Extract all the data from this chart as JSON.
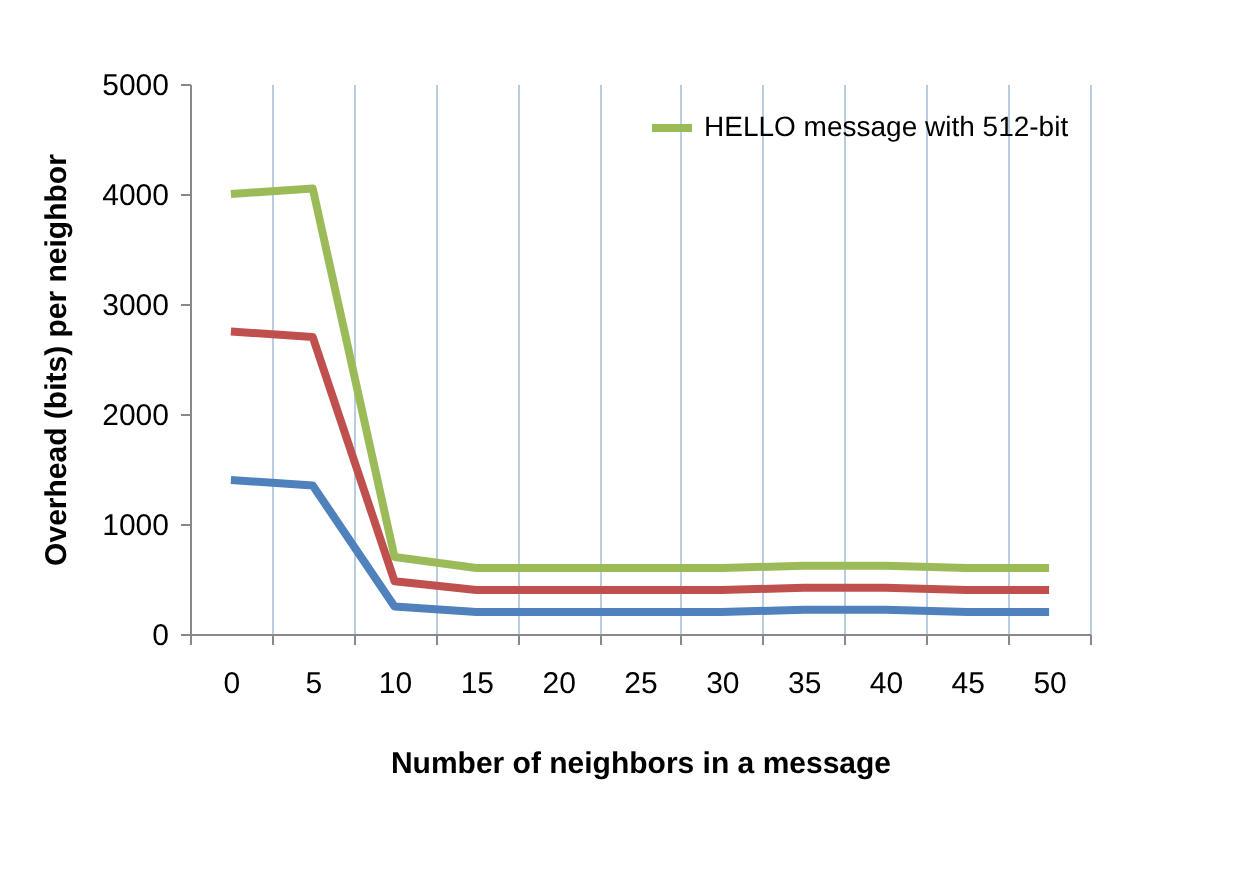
{
  "chart_data": {
    "type": "line",
    "xlabel": "Number of neighbors in a message",
    "ylabel": "Overhead (bits) per neighbor",
    "categories": [
      "0",
      "5",
      "10",
      "15",
      "20",
      "25",
      "30",
      "35",
      "40",
      "45",
      "50"
    ],
    "series": [
      {
        "name": "HELLO message with 512-bit",
        "color": "#9bbb59",
        "values": [
          4000,
          4050,
          700,
          600,
          600,
          600,
          600,
          620,
          620,
          600,
          600
        ]
      },
      {
        "color": "#c0504d",
        "values": [
          2750,
          2700,
          480,
          400,
          400,
          400,
          400,
          420,
          420,
          400,
          400
        ]
      },
      {
        "color": "#4f81bd",
        "values": [
          1400,
          1350,
          250,
          200,
          200,
          200,
          200,
          220,
          220,
          200,
          200
        ]
      }
    ],
    "ylim": [
      0,
      5000
    ],
    "yticks": [
      0,
      1000,
      2000,
      3000,
      4000,
      5000
    ],
    "grid": "x",
    "legend": "top right",
    "marker": "none",
    "line_style": "solid"
  }
}
